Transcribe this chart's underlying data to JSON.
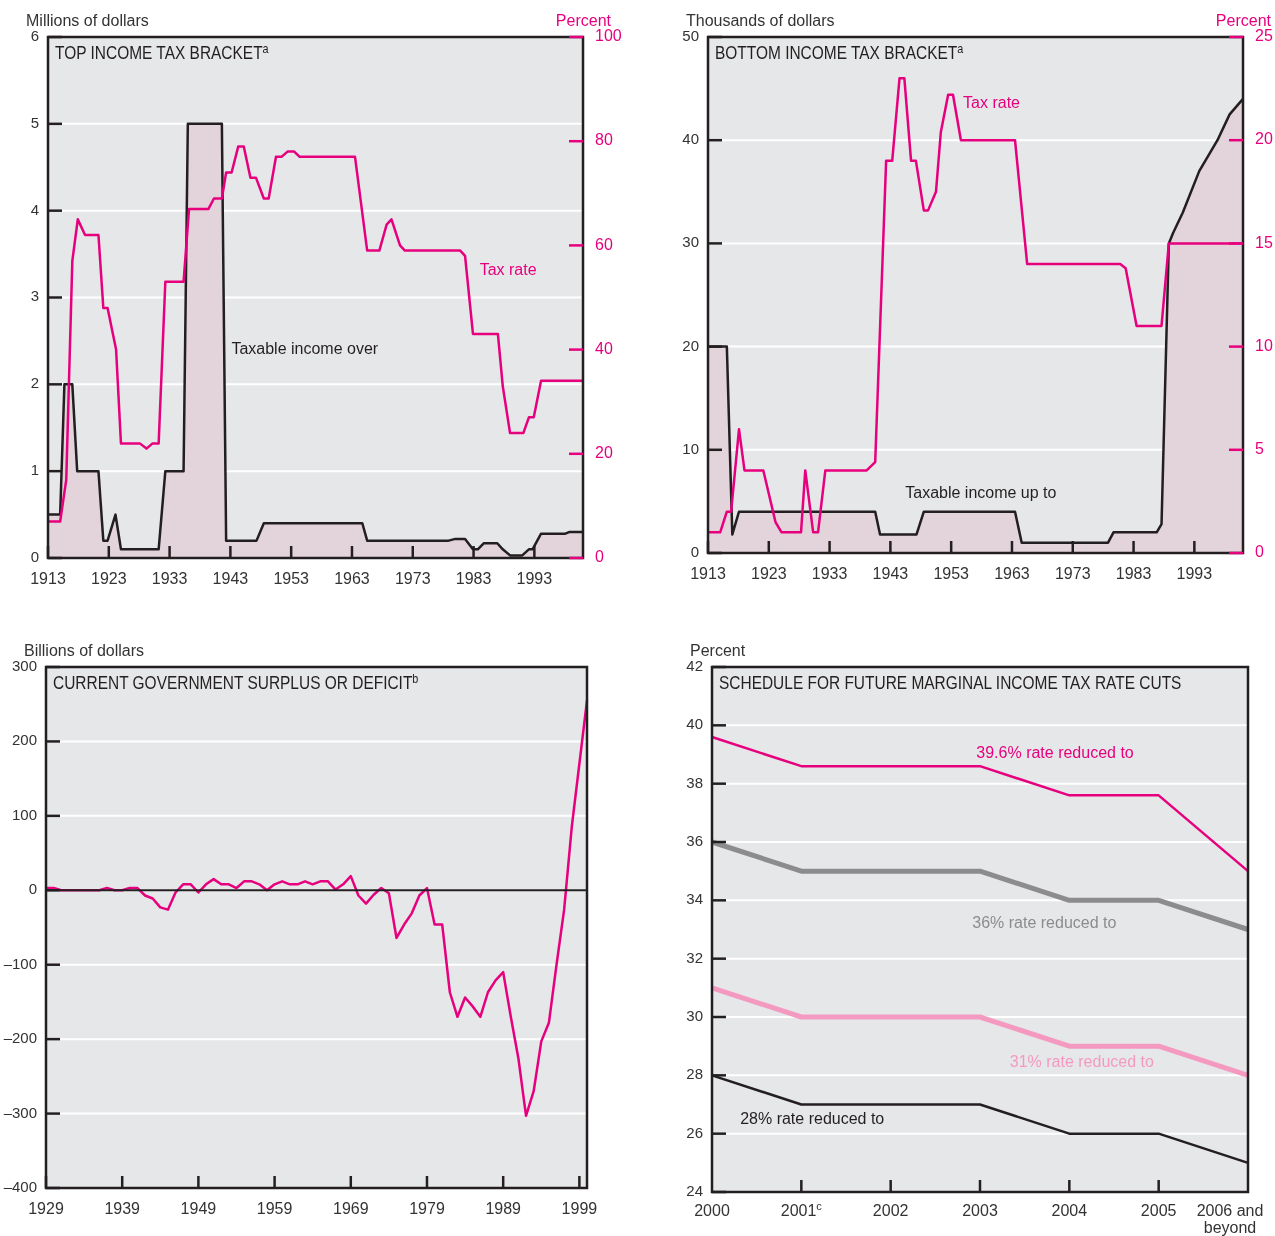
{
  "chart_data": [
    {
      "type": "line",
      "title": "TOP INCOME TAX BRACKET$^{a}$",
      "ylabel": "Millions of dollars",
      "y2label": "Percent",
      "xlim": [
        1913,
        2001
      ],
      "xticks": [
        1913,
        1923,
        1933,
        1943,
        1953,
        1963,
        1973,
        1983,
        1993
      ],
      "ylim": [
        0,
        6
      ],
      "yticks": [
        0,
        1,
        2,
        3,
        4,
        5,
        6
      ],
      "y2lim": [
        0,
        100
      ],
      "y2ticks": [
        0,
        20,
        40,
        60,
        80,
        100
      ],
      "grid": "y",
      "legend": false,
      "series": [
        {
          "type": "area",
          "name": "Taxable income over",
          "color": "#231f20",
          "x": [
            1913,
            1915.0,
            1915.7,
            1917.0,
            1917.8,
            1921.3,
            1922.1,
            1922.8,
            1924.1,
            1925.0,
            1931.2,
            1932.3,
            1935.3,
            1936.0,
            1941.6,
            1942.3,
            1947.3,
            1948.5,
            1964.7,
            1965.5,
            1978.9,
            1980.0,
            1981.6,
            1982.9,
            1983.7,
            1984.7,
            1986.9,
            1987.8,
            1989.0,
            1991.0,
            1992.1,
            1992.7,
            1994.1,
            1998.1,
            1998.8,
            2001
          ],
          "values": [
            0.5,
            0.5,
            2,
            2,
            1,
            1,
            0.2,
            0.2,
            0.5,
            0.1,
            0.1,
            1,
            1,
            5,
            5,
            0.2,
            0.2,
            0.4,
            0.4,
            0.2,
            0.2,
            0.22,
            0.22,
            0.1,
            0.1,
            0.17,
            0.17,
            0.1,
            0.03,
            0.03,
            0.1,
            0.1,
            0.28,
            0.28,
            0.3,
            0.3
          ]
        },
        {
          "type": "line",
          "name": "Tax rate",
          "color": "#e6007e",
          "axis": "y2",
          "x": [
            1913,
            1915.0,
            1916.0,
            1917.0,
            1917.9,
            1919.1,
            1921.3,
            1922.1,
            1922.8,
            1924.2,
            1925.0,
            1928.1,
            1929.2,
            1930.2,
            1931.2,
            1932.3,
            1935.3,
            1936.2,
            1939.4,
            1940.3,
            1941.6,
            1942.3,
            1943.2,
            1944.3,
            1945.2,
            1946.3,
            1947.2,
            1948.5,
            1949.3,
            1950.5,
            1951.4,
            1952.4,
            1953.5,
            1954.4,
            1963.5,
            1965.5,
            1967.5,
            1968.7,
            1969.5,
            1970.9,
            1971.7,
            1980.8,
            1981.6,
            1982.9,
            1987.0,
            1987.8,
            1989.0,
            1991.2,
            1992.1,
            1992.9,
            1994.1,
            2001
          ],
          "values": [
            7,
            7,
            15,
            57,
            65,
            62,
            62,
            48,
            48,
            40,
            22,
            22,
            21,
            22,
            22,
            53,
            53,
            67,
            67,
            69,
            69,
            74,
            74,
            79,
            79,
            73,
            73,
            69,
            69,
            77,
            77,
            78,
            78,
            77,
            77,
            59,
            59,
            64,
            65,
            60,
            59,
            59,
            58,
            43,
            43,
            33,
            24,
            24,
            27,
            27,
            34,
            34
          ]
        }
      ]
    },
    {
      "type": "line",
      "title": "BOTTOM INCOME TAX BRACKET$^{a}$",
      "ylabel": "Thousands of dollars",
      "y2label": "Percent",
      "xlim": [
        1913,
        2001
      ],
      "xticks": [
        1913,
        1923,
        1933,
        1943,
        1953,
        1963,
        1973,
        1983,
        1993
      ],
      "ylim": [
        0,
        50
      ],
      "yticks": [
        0,
        10,
        20,
        30,
        40,
        50
      ],
      "y2lim": [
        0,
        25
      ],
      "y2ticks": [
        0,
        5,
        10,
        15,
        20,
        25
      ],
      "grid": "y",
      "legend": false,
      "series": [
        {
          "type": "area",
          "name": "Taxable income up to",
          "color": "#231f20",
          "x": [
            1913,
            1916.1,
            1917.0,
            1918.1,
            1940.5,
            1941.3,
            1947.3,
            1948.5,
            1963.5,
            1964.6,
            1978.8,
            1979.7,
            1986.8,
            1987.6,
            1988.8,
            1989.5,
            1991.1,
            1993.8,
            1996.8,
            1998.8,
            2001
          ],
          "values": [
            20,
            20,
            1.8,
            4,
            4,
            1.8,
            1.8,
            4,
            4,
            1,
            1,
            2,
            2,
            2.8,
            30,
            31,
            33,
            37,
            40,
            42.5,
            44
          ]
        },
        {
          "type": "line",
          "name": "Tax rate",
          "color": "#e6007e",
          "axis": "y2",
          "x": [
            1913,
            1915.0,
            1916.1,
            1916.8,
            1918.1,
            1919.0,
            1922.1,
            1924.1,
            1925.1,
            1928.3,
            1929.0,
            1930.3,
            1931.1,
            1932.3,
            1939.1,
            1940.5,
            1942.3,
            1943.3,
            1944.5,
            1945.3,
            1946.4,
            1947.2,
            1948.5,
            1949.2,
            1950.5,
            1951.3,
            1952.5,
            1953.3,
            1954.6,
            1963.5,
            1965.5,
            1980.8,
            1981.7,
            1983.5,
            1987.6,
            1988.8,
            2001
          ],
          "values": [
            1,
            1,
            2,
            2,
            6,
            4,
            4,
            1.5,
            1,
            1,
            4,
            1,
            1,
            4,
            4,
            4.4,
            19,
            19,
            23,
            23,
            19,
            19,
            16.6,
            16.6,
            17.5,
            20.4,
            22.2,
            22.2,
            20,
            20,
            14,
            14,
            13.8,
            11,
            11,
            15,
            15
          ]
        }
      ]
    },
    {
      "type": "line",
      "title": "CURRENT GOVERNMENT SURPLUS OR DEFICIT$^{b}$",
      "ylabel": "Billions of dollars",
      "xlim": [
        1929,
        2000
      ],
      "xticks": [
        1929,
        1939,
        1949,
        1959,
        1969,
        1979,
        1989,
        1999
      ],
      "ylim": [
        -400,
        300
      ],
      "yticks": [
        {
          "value": -400,
          "label": "–400"
        },
        {
          "value": -300,
          "label": "–300"
        },
        {
          "value": -200,
          "label": "–200"
        },
        {
          "value": -100,
          "label": "–100"
        },
        0,
        100,
        200,
        300
      ],
      "grid": "y",
      "legend": false,
      "ref_lines": [
        {
          "axis": "y",
          "value": 0,
          "color": "#231f20"
        }
      ],
      "series": [
        {
          "type": "line",
          "color": "#e6007e",
          "x": [
            1929,
            1930,
            1931,
            1932,
            1933,
            1934,
            1935,
            1936,
            1937,
            1938,
            1939,
            1940,
            1941,
            1942,
            1943,
            1944,
            1945,
            1946,
            1947,
            1948,
            1949,
            1950,
            1951,
            1952,
            1953,
            1954,
            1955,
            1956,
            1957,
            1958,
            1959,
            1960,
            1961,
            1962,
            1963,
            1964,
            1965,
            1966,
            1967,
            1968,
            1969,
            1970,
            1971,
            1972,
            1973,
            1974,
            1975,
            1976,
            1977,
            1978,
            1979,
            1980,
            1981,
            1982,
            1983,
            1984,
            1985,
            1986,
            1987,
            1988,
            1989,
            1990,
            1991,
            1992,
            1993,
            1994,
            1995,
            1996,
            1997,
            1998,
            1999,
            2000
          ],
          "values": [
            3,
            3,
            0,
            0,
            0,
            0,
            0,
            0,
            3,
            0,
            0,
            3,
            3,
            -7,
            -11,
            -23,
            -26,
            -3,
            8,
            8,
            -3,
            8,
            15,
            8,
            8,
            3,
            12,
            12,
            8,
            0,
            8,
            12,
            8,
            8,
            12,
            8,
            12,
            12,
            1,
            8,
            19,
            -7,
            -18,
            -6,
            3,
            -4,
            -64,
            -46,
            -31,
            -7,
            3,
            -46,
            -46,
            -137,
            -170,
            -144,
            -156,
            -170,
            -137,
            -121,
            -110,
            -170,
            -226,
            -303,
            -270,
            -203,
            -178,
            -100,
            -26,
            85,
            170,
            255
          ]
        }
      ]
    },
    {
      "type": "line",
      "ylabel": "Percent",
      "title": "SCHEDULE FOR FUTURE MARGINAL INCOME TAX RATE CUTS",
      "categories": [
        "2000",
        "2001$^{c}$",
        "2002",
        "2003",
        "2004",
        "2005",
        "2006 and beyond"
      ],
      "ylim": [
        24,
        42
      ],
      "yticks": [
        24,
        26,
        28,
        30,
        32,
        34,
        36,
        38,
        40,
        42
      ],
      "grid": "y",
      "legend": false,
      "series": [
        {
          "name": "39.6% rate reduced to",
          "color": "#e6007e",
          "values": [
            39.6,
            38.6,
            38.6,
            38.6,
            37.6,
            37.6,
            35.0
          ]
        },
        {
          "name": "36% rate reduced to",
          "color": "#8c8c8e",
          "values": [
            36,
            35,
            35,
            35,
            34,
            34,
            33
          ]
        },
        {
          "name": "31% rate reduced to",
          "color": "#f49ac1",
          "values": [
            31,
            30,
            30,
            30,
            29,
            29,
            28
          ]
        },
        {
          "name": "28% rate reduced to",
          "color": "#231f20",
          "values": [
            28,
            27,
            27,
            27,
            26,
            26,
            25
          ]
        }
      ]
    }
  ]
}
